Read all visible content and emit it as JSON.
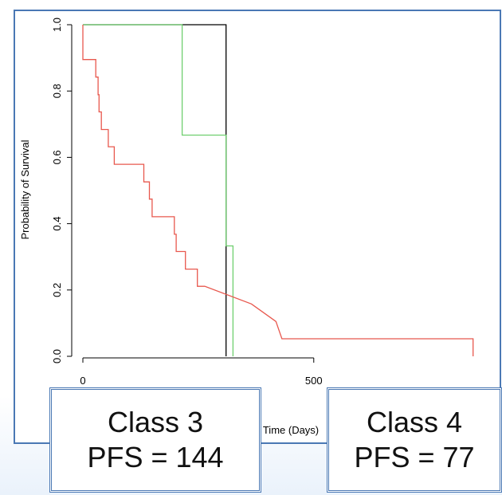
{
  "chart_data": {
    "type": "line",
    "subtype": "kaplan-meier step",
    "title": "",
    "xlabel": "Time (Days)",
    "ylabel": "Probability of Survival",
    "xlim": [
      0,
      880
    ],
    "ylim": [
      0,
      1.0
    ],
    "x_ticks": [
      0,
      500
    ],
    "x_tick_labels": [
      "0",
      "500"
    ],
    "y_ticks": [
      0.0,
      0.2,
      0.4,
      0.6,
      0.8,
      1.0
    ],
    "y_tick_labels": [
      "0.0",
      "0.2",
      "0.4",
      "0.6",
      "0.8",
      "1.0"
    ],
    "grid": false,
    "series": [
      {
        "color": "#000000",
        "x": [
          0,
          310,
          310
        ],
        "y": [
          1.0,
          1.0,
          0.0
        ]
      },
      {
        "color": "#6fcf6f",
        "x": [
          0,
          215,
          215,
          310,
          310,
          325,
          325
        ],
        "y": [
          1.0,
          1.0,
          0.667,
          0.667,
          0.333,
          0.333,
          0.0
        ]
      },
      {
        "color": "#e8584e",
        "x": [
          0,
          0,
          28,
          28,
          33,
          33,
          35,
          35,
          40,
          40,
          55,
          55,
          68,
          68,
          132,
          132,
          144,
          144,
          150,
          150,
          198,
          198,
          202,
          202,
          222,
          222,
          248,
          248,
          264,
          264,
          365,
          365,
          418,
          418,
          431,
          431,
          845,
          845
        ],
        "y": [
          1.0,
          0.895,
          0.895,
          0.842,
          0.842,
          0.789,
          0.789,
          0.737,
          0.737,
          0.684,
          0.684,
          0.632,
          0.632,
          0.579,
          0.579,
          0.526,
          0.526,
          0.474,
          0.474,
          0.421,
          0.421,
          0.368,
          0.368,
          0.316,
          0.316,
          0.263,
          0.263,
          0.211,
          0.211,
          0.211,
          0.158,
          0.158,
          0.105,
          0.105,
          0.053,
          0.053,
          0.053,
          0.0
        ]
      }
    ]
  },
  "labels": {
    "class3_title": "Class 3",
    "class3_pfs": "PFS = 144",
    "class4_title": "Class 4",
    "class4_pfs": "PFS = 77"
  }
}
